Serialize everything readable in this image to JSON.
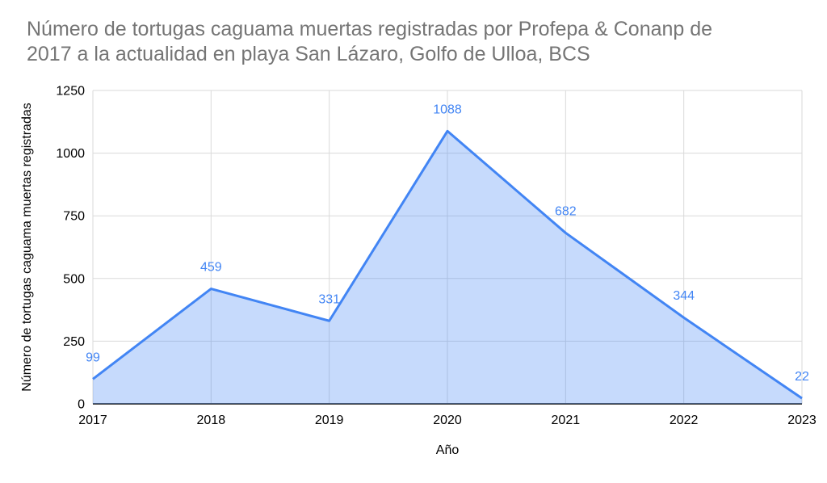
{
  "title_lines": [
    "Número de tortugas caguama muertas registradas por Profepa & Conanp de",
    "2017 a la actualidad en playa San Lázaro, Golfo de Ulloa, BCS"
  ],
  "chart_data": {
    "type": "area",
    "title": "Número de tortugas caguama muertas registradas por Profepa & Conanp de 2017 a la actualidad en playa San Lázaro, Golfo de Ulloa, BCS",
    "categories": [
      "2017",
      "2018",
      "2019",
      "2020",
      "2021",
      "2022",
      "2023"
    ],
    "values": [
      99,
      459,
      331,
      1088,
      682,
      344,
      22
    ],
    "data_labels": [
      "99",
      "459",
      "331",
      "1088",
      "682",
      "344",
      "22"
    ],
    "xlabel": "Año",
    "ylabel": "Número de tortugas caguama muertas registradas",
    "ylim": [
      0,
      1250
    ],
    "yticks": [
      0,
      250,
      500,
      750,
      1000,
      1250
    ],
    "grid": true,
    "legend": "none",
    "colors": {
      "line": "#4285f4",
      "fill": "rgba(66,133,244,0.3)",
      "data_label": "#4285f4",
      "gridline": "#dadada",
      "axis_line": "#424242",
      "tick_label": "#000000",
      "axis_title": "#000000",
      "title": "#757575"
    }
  }
}
